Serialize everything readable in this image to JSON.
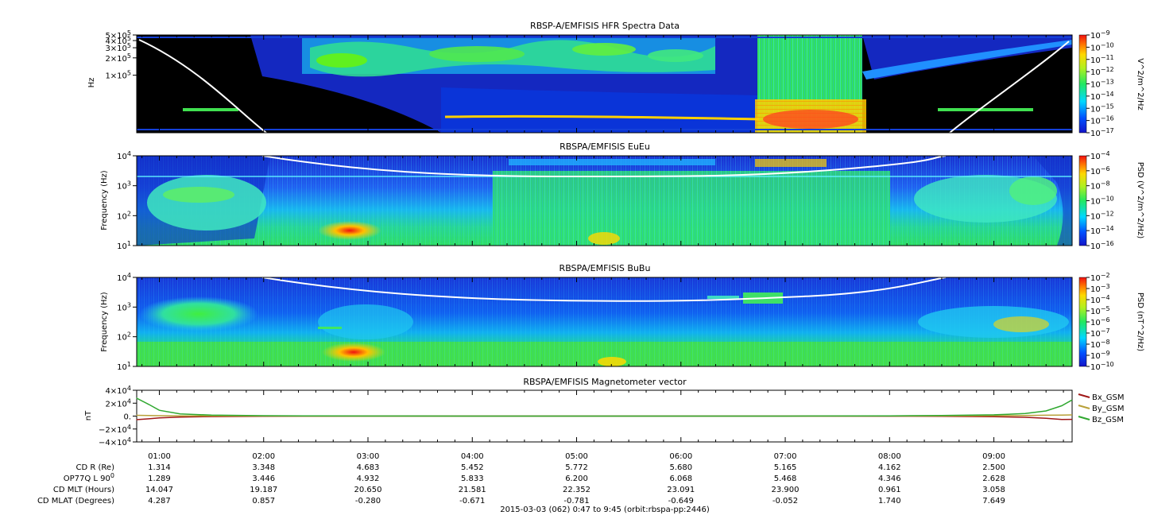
{
  "chart_data": [
    {
      "type": "heatmap",
      "title": "RBSP-A/EMFISIS  HFR Spectra Data",
      "ylabel": "Hz",
      "yscale": "log",
      "yticks": [
        {
          "v": 500000,
          "m": "5",
          "e": "5"
        },
        {
          "v": 400000,
          "m": "4",
          "e": "5"
        },
        {
          "v": 300000,
          "m": "3",
          "e": "5"
        },
        {
          "v": 200000,
          "m": "2",
          "e": "5"
        },
        {
          "v": 100000,
          "m": "1",
          "e": "5"
        }
      ],
      "ylim": [
        10000,
        500000
      ],
      "colorbar": {
        "label": "V^2/m^2/Hz",
        "scale": "log",
        "range": [
          -17,
          -9
        ],
        "ticks": [
          -9,
          -10,
          -11,
          -12,
          -13,
          -14,
          -15,
          -16,
          -17
        ]
      },
      "overlay_curve": "white line"
    },
    {
      "type": "heatmap",
      "title": "RBSPA/EMFISIS  EuEu",
      "ylabel": "Frequency (Hz)",
      "yscale": "log",
      "yticks": [
        {
          "v": 10000,
          "m": "10",
          "e": "4"
        },
        {
          "v": 1000,
          "m": "10",
          "e": "3"
        },
        {
          "v": 100,
          "m": "10",
          "e": "2"
        },
        {
          "v": 10,
          "m": "10",
          "e": "1"
        }
      ],
      "ylim": [
        10,
        10000
      ],
      "colorbar": {
        "label": "PSD (V^2/m^2/Hz)",
        "scale": "log",
        "range": [
          -16,
          -4
        ],
        "ticks": [
          -4,
          -6,
          -8,
          -10,
          -12,
          -14,
          -16
        ]
      },
      "overlay_curve": "white line"
    },
    {
      "type": "heatmap",
      "title": "RBSPA/EMFISIS  BuBu",
      "ylabel": "Frequency (Hz)",
      "yscale": "log",
      "yticks": [
        {
          "v": 10000,
          "m": "10",
          "e": "4"
        },
        {
          "v": 1000,
          "m": "10",
          "e": "3"
        },
        {
          "v": 100,
          "m": "10",
          "e": "2"
        },
        {
          "v": 10,
          "m": "10",
          "e": "1"
        }
      ],
      "ylim": [
        10,
        10000
      ],
      "colorbar": {
        "label": "PSD (nT^2/Hz)",
        "scale": "log",
        "range": [
          -10,
          -2
        ],
        "ticks": [
          -2,
          -3,
          -4,
          -5,
          -6,
          -7,
          -8,
          -9,
          -10
        ]
      },
      "overlay_curve": "white line"
    },
    {
      "type": "line",
      "title": "RBSPA/EMFISIS  Magnetometer vector",
      "ylabel": "nT",
      "ylim": [
        -40000,
        40000
      ],
      "yticks": [
        {
          "v": 40000,
          "m": "4",
          "e": "4",
          "sign": ""
        },
        {
          "v": 20000,
          "m": "2",
          "e": "4",
          "sign": ""
        },
        {
          "v": 0,
          "m": "0.",
          "e": "",
          "sign": ""
        },
        {
          "v": -20000,
          "m": "2",
          "e": "4",
          "sign": "−"
        },
        {
          "v": -40000,
          "m": "4",
          "e": "4",
          "sign": "−"
        }
      ],
      "x_hours": [
        0.78,
        0.9,
        1.0,
        1.2,
        1.5,
        2.0,
        2.5,
        3.0,
        4.0,
        5.0,
        6.0,
        7.0,
        8.0,
        8.5,
        9.0,
        9.3,
        9.5,
        9.65,
        9.75
      ],
      "series": [
        {
          "name": "Bx_GSM",
          "color": "#a01818",
          "values": [
            -5500,
            -4200,
            -2800,
            -1500,
            -700,
            -250,
            -100,
            -50,
            0,
            0,
            0,
            0,
            -150,
            -400,
            -900,
            -1800,
            -3500,
            -5200,
            -5000
          ]
        },
        {
          "name": "By_GSM",
          "color": "#b8a038",
          "values": [
            1200,
            1000,
            600,
            300,
            200,
            100,
            50,
            0,
            0,
            0,
            0,
            0,
            100,
            300,
            600,
            1000,
            1400,
            1600,
            1800
          ]
        },
        {
          "name": "Bz_GSM",
          "color": "#30a830",
          "values": [
            28000,
            18000,
            9000,
            3500,
            1500,
            600,
            200,
            100,
            0,
            0,
            0,
            0,
            400,
            900,
            2000,
            4000,
            8000,
            16000,
            25000
          ]
        }
      ]
    }
  ],
  "time_axis": {
    "ticks": [
      "01:00",
      "02:00",
      "03:00",
      "04:00",
      "05:00",
      "06:00",
      "07:00",
      "08:00",
      "09:00"
    ],
    "start_hour": 0.783,
    "end_hour": 9.75
  },
  "ephemeris": [
    {
      "label": "CD R (Re)",
      "values": [
        "1.314",
        "3.348",
        "4.683",
        "5.452",
        "5.772",
        "5.680",
        "5.165",
        "4.162",
        "2.500"
      ]
    },
    {
      "label": "OP77Q L 90",
      "sup": "0",
      "values": [
        "1.289",
        "3.446",
        "4.932",
        "5.833",
        "6.200",
        "6.068",
        "5.468",
        "4.346",
        "2.628"
      ]
    },
    {
      "label": "CD MLT (Hours)",
      "values": [
        "14.047",
        "19.187",
        "20.650",
        "21.581",
        "22.352",
        "23.091",
        "23.900",
        "0.961",
        "3.058"
      ]
    },
    {
      "label": "CD MLAT (Degrees)",
      "values": [
        "4.287",
        "0.857",
        "-0.280",
        "-0.671",
        "-0.781",
        "-0.649",
        "-0.052",
        "1.740",
        "7.649"
      ]
    }
  ],
  "footer": "2015-03-03 (062) 0:47 to 9:45 (orbit:rbspa-pp:2446)"
}
